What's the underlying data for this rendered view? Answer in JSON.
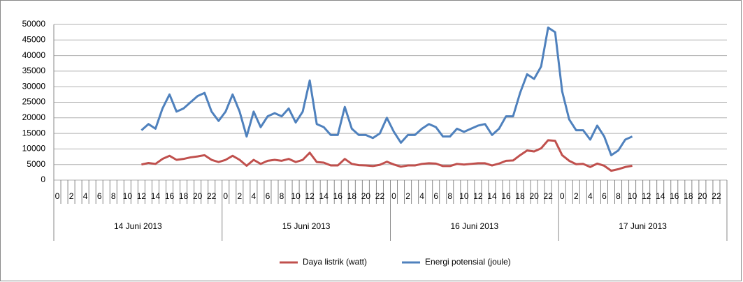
{
  "chart_data": {
    "type": "line",
    "categories": [
      "0",
      null,
      "2",
      null,
      "4",
      null,
      "6",
      null,
      "8",
      null,
      "10",
      null,
      "12",
      null,
      "14",
      null,
      "16",
      null,
      "18",
      null,
      "20",
      null,
      "22",
      null,
      "0",
      null,
      "2",
      null,
      "4",
      null,
      "6",
      null,
      "8",
      null,
      "10",
      null,
      "12",
      null,
      "14",
      null,
      "16",
      null,
      "18",
      null,
      "20",
      null,
      "22",
      null,
      "0",
      null,
      "2",
      null,
      "4",
      null,
      "6",
      null,
      "8",
      null,
      "10",
      null,
      "12",
      null,
      "14",
      null,
      "16",
      null,
      "18",
      null,
      "20",
      null,
      "22",
      null,
      "0",
      null,
      "2",
      null,
      "4",
      null,
      "6",
      null,
      "8",
      null,
      "10",
      null,
      "12",
      null,
      "14",
      null,
      "16",
      null,
      "18",
      null,
      "20",
      null,
      "22",
      null
    ],
    "category_groups": [
      "14 Juni 2013",
      "15 Juni 2013",
      "16 Juni 2013",
      "17 Juni 2013"
    ],
    "series": [
      {
        "name": "Daya listrik (watt)",
        "color": "#c0504d",
        "values": [
          null,
          null,
          null,
          null,
          null,
          null,
          null,
          null,
          null,
          null,
          null,
          null,
          5000,
          5500,
          5200,
          6800,
          7800,
          6500,
          6800,
          7300,
          7600,
          8000,
          6500,
          5800,
          6500,
          7800,
          6500,
          4600,
          6500,
          5200,
          6200,
          6500,
          6200,
          6800,
          5800,
          6500,
          8800,
          5800,
          5600,
          4700,
          4700,
          6800,
          5200,
          4800,
          4700,
          4500,
          4900,
          5900,
          5000,
          4300,
          4700,
          4700,
          5200,
          5400,
          5300,
          4500,
          4500,
          5200,
          5000,
          5200,
          5400,
          5400,
          4700,
          5300,
          6200,
          6300,
          8000,
          9500,
          9200,
          10200,
          12800,
          12600,
          8000,
          6200,
          5100,
          5200,
          4200,
          5300,
          4600,
          3000,
          3500,
          4200,
          4600,
          null,
          null,
          null,
          null,
          null,
          null,
          null,
          null,
          null,
          null,
          null,
          null,
          null
        ]
      },
      {
        "name": "Energi potensial (joule)",
        "color": "#4f81bd",
        "values": [
          null,
          null,
          null,
          null,
          null,
          null,
          null,
          null,
          null,
          null,
          null,
          null,
          16000,
          18000,
          16500,
          23000,
          27500,
          22000,
          23000,
          25000,
          27000,
          28000,
          22000,
          19000,
          22000,
          27500,
          22000,
          14000,
          22000,
          17000,
          20500,
          21500,
          20500,
          23000,
          18500,
          22000,
          32000,
          18000,
          17000,
          14500,
          14500,
          23500,
          16500,
          14500,
          14500,
          13500,
          15000,
          20000,
          15500,
          12000,
          14500,
          14500,
          16500,
          18000,
          17000,
          14000,
          14000,
          16500,
          15500,
          16500,
          17500,
          18000,
          14500,
          16500,
          20500,
          20500,
          28000,
          34000,
          32500,
          36500,
          49000,
          47500,
          28500,
          19500,
          16000,
          16000,
          13000,
          17500,
          14000,
          8000,
          9500,
          13000,
          14000,
          null,
          null,
          null,
          null,
          null,
          null,
          null,
          null,
          null,
          null,
          null,
          null,
          null
        ]
      }
    ],
    "ylim": [
      0,
      50000
    ],
    "yticks": [
      0,
      5000,
      10000,
      15000,
      20000,
      25000,
      30000,
      35000,
      40000,
      45000,
      50000
    ],
    "grid": true,
    "legend": "bottom"
  }
}
